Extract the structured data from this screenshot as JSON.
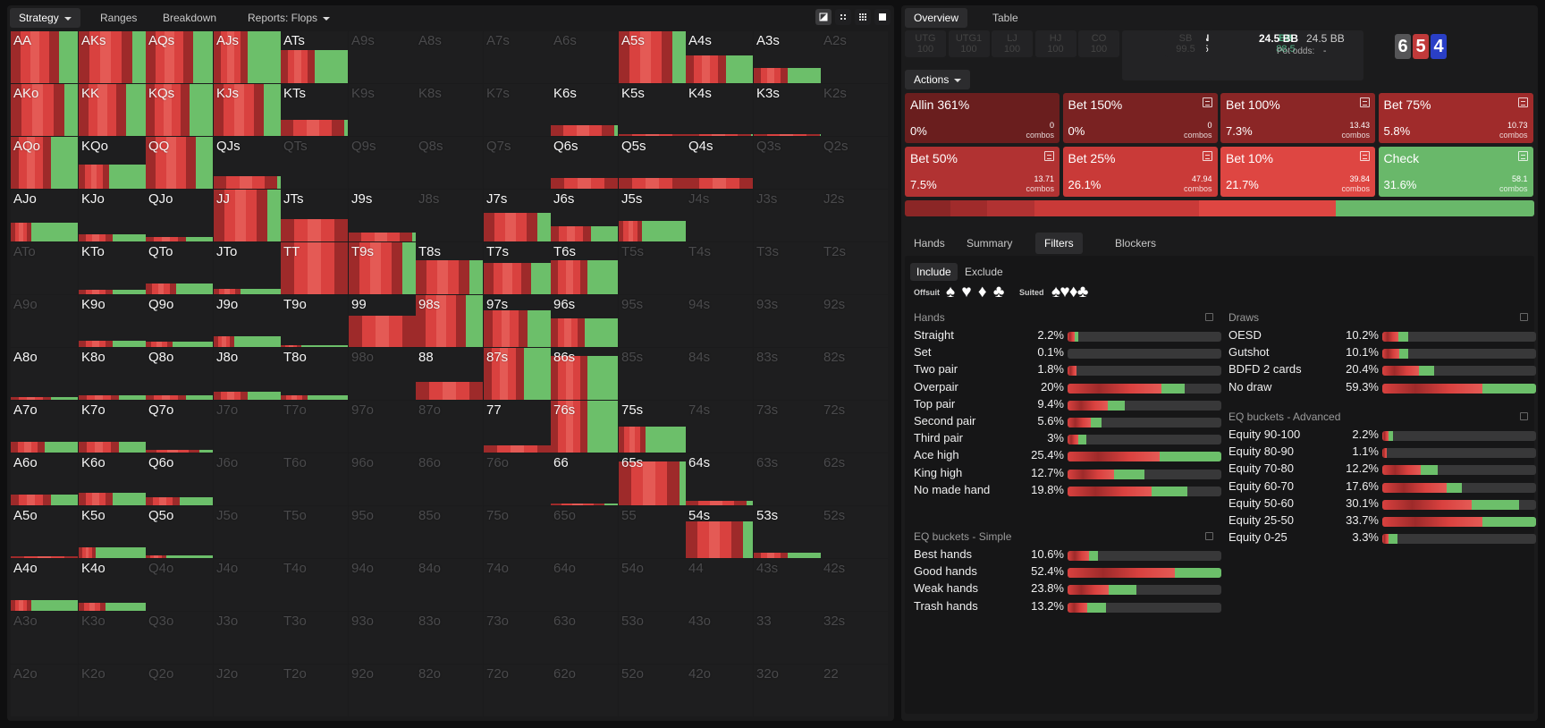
{
  "colors": {
    "red_dark": "#9e2a2a",
    "red": "#d9413f",
    "red_light": "#e45a55",
    "green": "#6cbf6a",
    "check": "#69b86a",
    "bg": "#1b1b1c"
  },
  "left_tabs": {
    "strategy": "Strategy",
    "ranges": "Ranges",
    "breakdown": "Breakdown",
    "reports": "Reports: Flops"
  },
  "view_buttons": [
    "contrast-icon",
    "compact-grid-icon",
    "grid-icon",
    "square-icon"
  ],
  "hands": [
    [
      "AA",
      "AKs",
      "AQs",
      "AJs",
      "ATs",
      "A9s",
      "A8s",
      "A7s",
      "A6s",
      "A5s",
      "A4s",
      "A3s",
      "A2s"
    ],
    [
      "AKo",
      "KK",
      "KQs",
      "KJs",
      "KTs",
      "K9s",
      "K8s",
      "K7s",
      "K6s",
      "K5s",
      "K4s",
      "K3s",
      "K2s"
    ],
    [
      "AQo",
      "KQo",
      "QQ",
      "QJs",
      "QTs",
      "Q9s",
      "Q8s",
      "Q7s",
      "Q6s",
      "Q5s",
      "Q4s",
      "Q3s",
      "Q2s"
    ],
    [
      "AJo",
      "KJo",
      "QJo",
      "JJ",
      "JTs",
      "J9s",
      "J8s",
      "J7s",
      "J6s",
      "J5s",
      "J4s",
      "J3s",
      "J2s"
    ],
    [
      "ATo",
      "KTo",
      "QTo",
      "JTo",
      "TT",
      "T9s",
      "T8s",
      "T7s",
      "T6s",
      "T5s",
      "T4s",
      "T3s",
      "T2s"
    ],
    [
      "A9o",
      "K9o",
      "Q9o",
      "J9o",
      "T9o",
      "99",
      "98s",
      "97s",
      "96s",
      "95s",
      "94s",
      "93s",
      "92s"
    ],
    [
      "A8o",
      "K8o",
      "Q8o",
      "J8o",
      "T8o",
      "98o",
      "88",
      "87s",
      "86s",
      "85s",
      "84s",
      "83s",
      "82s"
    ],
    [
      "A7o",
      "K7o",
      "Q7o",
      "J7o",
      "T7o",
      "97o",
      "87o",
      "77",
      "76s",
      "75s",
      "74s",
      "73s",
      "72s"
    ],
    [
      "A6o",
      "K6o",
      "Q6o",
      "J6o",
      "T6o",
      "96o",
      "86o",
      "76o",
      "66",
      "65s",
      "64s",
      "63s",
      "62s"
    ],
    [
      "A5o",
      "K5o",
      "Q5o",
      "J5o",
      "T5o",
      "95o",
      "85o",
      "75o",
      "65o",
      "55",
      "54s",
      "53s",
      "52s"
    ],
    [
      "A4o",
      "K4o",
      "Q4o",
      "J4o",
      "T4o",
      "94o",
      "84o",
      "74o",
      "64o",
      "54o",
      "44",
      "43s",
      "42s"
    ],
    [
      "A3o",
      "K3o",
      "Q3o",
      "J3o",
      "T3o",
      "93o",
      "83o",
      "73o",
      "63o",
      "53o",
      "43o",
      "33",
      "32s"
    ],
    [
      "A2o",
      "K2o",
      "Q2o",
      "J2o",
      "T2o",
      "92o",
      "82o",
      "72o",
      "62o",
      "52o",
      "42o",
      "32o",
      "22"
    ]
  ],
  "hand_freq": {
    "AA": [
      1,
      0.72
    ],
    "AKs": [
      1,
      0.8
    ],
    "AQs": [
      1,
      0.7
    ],
    "AJs": [
      1,
      0.5
    ],
    "ATs": [
      0.63,
      0.5
    ],
    "A5s": [
      1,
      0.8
    ],
    "A4s": [
      0.53,
      0.6
    ],
    "A3s": [
      0.29,
      0.5
    ],
    "AKo": [
      1,
      0.8
    ],
    "KK": [
      1,
      0.7
    ],
    "KQs": [
      1,
      0.65
    ],
    "KJs": [
      1,
      0.75
    ],
    "KTs": [
      0.31,
      0.95
    ],
    "K6s": [
      0.2,
      0.95
    ],
    "K5s": [
      0.04,
      1
    ],
    "K4s": [
      0.04,
      0.97
    ],
    "K3s": [
      0.03,
      0.98
    ],
    "AQo": [
      1,
      0.6
    ],
    "KQo": [
      0.46,
      0.45
    ],
    "QQ": [
      1,
      0.75
    ],
    "QJs": [
      0.25,
      0.95
    ],
    "Q6s": [
      0.2,
      1
    ],
    "Q5s": [
      0.2,
      1
    ],
    "Q4s": [
      0.2,
      1
    ],
    "AJo": [
      0.36,
      0.3
    ],
    "KJo": [
      0.13,
      0.5
    ],
    "QJo": [
      0.08,
      0.6
    ],
    "JJ": [
      1,
      0.8
    ],
    "JTs": [
      0.43,
      1
    ],
    "J9s": [
      0.17,
      0.95
    ],
    "J7s": [
      0.55,
      0.8
    ],
    "J6s": [
      0.3,
      0.6
    ],
    "J5s": [
      0.4,
      0.35
    ],
    "KTo": [
      0.08,
      0.5
    ],
    "QTo": [
      0.2,
      0.45
    ],
    "JTo": [
      0.1,
      0.4
    ],
    "TT": [
      1,
      1
    ],
    "T9s": [
      1,
      0.8
    ],
    "T8s": [
      0.65,
      0.8
    ],
    "T7s": [
      0.6,
      0.7
    ],
    "T6s": [
      0.65,
      0.55
    ],
    "K9o": [
      0.12,
      0.5
    ],
    "Q9o": [
      0.1,
      0.4
    ],
    "J9o": [
      0.2,
      0.3
    ],
    "T9o": [
      0.04,
      0.3
    ],
    "99": [
      0.6,
      1
    ],
    "98s": [
      1,
      0.75
    ],
    "97s": [
      0.7,
      0.65
    ],
    "96s": [
      0.55,
      0.5
    ],
    "A8o": [
      0.06,
      0.6
    ],
    "K8o": [
      0.08,
      0.6
    ],
    "Q8o": [
      0.08,
      0.6
    ],
    "J8o": [
      0.15,
      0.5
    ],
    "T8o": [
      0.08,
      0.4
    ],
    "88": [
      0.35,
      1
    ],
    "87s": [
      1,
      0.6
    ],
    "86s": [
      0.85,
      0.55
    ],
    "A7o": [
      0.2,
      0.5
    ],
    "K7o": [
      0.2,
      0.6
    ],
    "Q7o": [
      0.06,
      0.8
    ],
    "76s": [
      1,
      0.55
    ],
    "75s": [
      0.5,
      0.4
    ],
    "77": [
      0.13,
      1
    ],
    "A6o": [
      0.2,
      0.6
    ],
    "K6o": [
      0.25,
      0.5
    ],
    "Q6o": [
      0.15,
      0.5
    ],
    "66": [
      0.04,
      0.8
    ],
    "65s": [
      0.85,
      0.9
    ],
    "64s": [
      0.08,
      0.9
    ],
    "A5o": [
      0.04,
      1
    ],
    "K5o": [
      0.2,
      0.25
    ],
    "Q5o": [
      0.06,
      0.3
    ],
    "54s": [
      0.7,
      0.85
    ],
    "53s": [
      0.1,
      0.5
    ],
    "A4o": [
      0.2,
      0.3
    ],
    "K4o": [
      0.15,
      0.4
    ]
  },
  "right_tabs": {
    "overview": "Overview",
    "table": "Table"
  },
  "seats": [
    {
      "pos": "UTG",
      "stack": "100",
      "active": false
    },
    {
      "pos": "UTG1",
      "stack": "100",
      "active": false
    },
    {
      "pos": "LJ",
      "stack": "100",
      "active": false
    },
    {
      "pos": "HJ",
      "stack": "100",
      "active": false
    },
    {
      "pos": "CO",
      "stack": "100",
      "active": false
    },
    {
      "pos": "BTN",
      "stack": "88.5",
      "active": true
    },
    {
      "pos": "SB",
      "stack": "99.5",
      "active": false
    },
    {
      "pos": "BB",
      "stack": "88.5",
      "active": true
    }
  ],
  "pot": {
    "value": "24.5 BB",
    "value2": "24.5 BB",
    "odds_label": "Pot odds:",
    "odds_value": "-"
  },
  "board": [
    {
      "rank": "6",
      "color": "#555557"
    },
    {
      "rank": "5",
      "color": "#c03a3a"
    },
    {
      "rank": "4",
      "color": "#2a3fc6"
    }
  ],
  "actions_label": "Actions",
  "actions": [
    {
      "name": "Allin 361%",
      "pct": "0%",
      "combos": "0",
      "combos_label": "combos",
      "color": "#6a1e1e"
    },
    {
      "name": "Bet 150%",
      "pct": "0%",
      "combos": "0",
      "combos_label": "combos",
      "color": "#7a2222"
    },
    {
      "name": "Bet 100%",
      "pct": "7.3%",
      "combos": "13.43",
      "combos_label": "combos",
      "color": "#8b2626"
    },
    {
      "name": "Bet 75%",
      "pct": "5.8%",
      "combos": "10.73",
      "combos_label": "combos",
      "color": "#a02b2b"
    },
    {
      "name": "Bet 50%",
      "pct": "7.5%",
      "combos": "13.71",
      "combos_label": "combos",
      "color": "#b13232"
    },
    {
      "name": "Bet 25%",
      "pct": "26.1%",
      "combos": "47.94",
      "combos_label": "combos",
      "color": "#c93a38"
    },
    {
      "name": "Bet 10%",
      "pct": "21.7%",
      "combos": "39.84",
      "combos_label": "combos",
      "color": "#de4642"
    },
    {
      "name": "Check",
      "pct": "31.6%",
      "combos": "58.1",
      "combos_label": "combos",
      "color": "#69b86a"
    }
  ],
  "summary_bar": [
    0,
    0,
    0.073,
    0.058,
    0.075,
    0.261,
    0.217,
    0.316
  ],
  "sub_tabs": {
    "hands": "Hands",
    "summary": "Summary",
    "filters": "Filters",
    "blockers": "Blockers"
  },
  "filters": {
    "include": "Include",
    "exclude": "Exclude",
    "offsuit": "Offsuit",
    "suited": "Suited",
    "suit_symbols": "♠ ♥ ♦ ♣"
  },
  "hands_section": {
    "title": "Hands",
    "rows": [
      {
        "label": "Straight",
        "value": "2.2%",
        "fill": 0.07,
        "green": 0.35
      },
      {
        "label": "Set",
        "value": "0.1%",
        "fill": 0,
        "green": 0
      },
      {
        "label": "Two pair",
        "value": "1.8%",
        "fill": 0.06,
        "green": 0
      },
      {
        "label": "Overpair",
        "value": "20%",
        "fill": 0.76,
        "green": 0.2
      },
      {
        "label": "Top pair",
        "value": "9.4%",
        "fill": 0.37,
        "green": 0.3
      },
      {
        "label": "Second pair",
        "value": "5.6%",
        "fill": 0.22,
        "green": 0.3
      },
      {
        "label": "Third pair",
        "value": "3%",
        "fill": 0.12,
        "green": 0.4
      },
      {
        "label": "Ace high",
        "value": "25.4%",
        "fill": 1,
        "green": 0.4
      },
      {
        "label": "King high",
        "value": "12.7%",
        "fill": 0.5,
        "green": 0.4
      },
      {
        "label": "No made hand",
        "value": "19.8%",
        "fill": 0.78,
        "green": 0.3
      }
    ]
  },
  "eq_simple": {
    "title": "EQ buckets - Simple",
    "rows": [
      {
        "label": "Best hands",
        "value": "10.6%",
        "fill": 0.2,
        "green": 0.3
      },
      {
        "label": "Good hands",
        "value": "52.4%",
        "fill": 1,
        "green": 0.3
      },
      {
        "label": "Weak hands",
        "value": "23.8%",
        "fill": 0.45,
        "green": 0.4
      },
      {
        "label": "Trash hands",
        "value": "13.2%",
        "fill": 0.25,
        "green": 0.5
      }
    ]
  },
  "draws": {
    "title": "Draws",
    "rows": [
      {
        "label": "OESD",
        "value": "10.2%",
        "fill": 0.17,
        "green": 0.4
      },
      {
        "label": "Gutshot",
        "value": "10.1%",
        "fill": 0.17,
        "green": 0.35
      },
      {
        "label": "BDFD 2 cards",
        "value": "20.4%",
        "fill": 0.34,
        "green": 0.3
      },
      {
        "label": "No draw",
        "value": "59.3%",
        "fill": 1,
        "green": 0.35
      }
    ]
  },
  "eq_adv": {
    "title": "EQ buckets - Advanced",
    "rows": [
      {
        "label": "Equity 90-100",
        "value": "2.2%",
        "fill": 0.07,
        "green": 0.4
      },
      {
        "label": "Equity 80-90",
        "value": "1.1%",
        "fill": 0.03,
        "green": 0
      },
      {
        "label": "Equity 70-80",
        "value": "12.2%",
        "fill": 0.36,
        "green": 0.3
      },
      {
        "label": "Equity 60-70",
        "value": "17.6%",
        "fill": 0.52,
        "green": 0.2
      },
      {
        "label": "Equity 50-60",
        "value": "30.1%",
        "fill": 0.89,
        "green": 0.35
      },
      {
        "label": "Equity 25-50",
        "value": "33.7%",
        "fill": 1,
        "green": 0.35
      },
      {
        "label": "Equity 0-25",
        "value": "3.3%",
        "fill": 0.1,
        "green": 0.6
      }
    ]
  }
}
